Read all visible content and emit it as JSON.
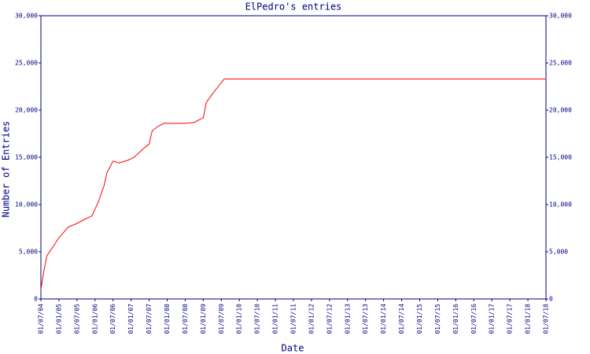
{
  "chart_data": {
    "type": "line",
    "title": "ElPedro's entries",
    "x_label": "Date",
    "y_label": "Number of Entries",
    "x": [
      "2004-07",
      "2004-08",
      "2004-09",
      "2004-11",
      "2005-01",
      "2005-03",
      "2005-04",
      "2005-07",
      "2005-10",
      "2005-12",
      "2006-02",
      "2006-04",
      "2006-05",
      "2006-07",
      "2006-09",
      "2006-12",
      "2007-02",
      "2007-05",
      "2007-07",
      "2007-08",
      "2007-10",
      "2007-12",
      "2008-07",
      "2008-10",
      "2009-01",
      "2009-02",
      "2009-04",
      "2009-06",
      "2009-08",
      "2018-07"
    ],
    "series": [
      {
        "name": "entries",
        "color": "#ff0000",
        "values": [
          1000,
          3000,
          4600,
          5500,
          6500,
          7200,
          7600,
          8000,
          8500,
          8800,
          10200,
          12000,
          13400,
          14600,
          14400,
          14700,
          15000,
          15900,
          16400,
          17800,
          18300,
          18600,
          18600,
          18700,
          19200,
          20800,
          21700,
          22500,
          23300,
          23300
        ]
      }
    ],
    "xlim": [
      "2004-07",
      "2018-07"
    ],
    "xticks": [
      {
        "value": "2004-07",
        "label": "01/07/04"
      },
      {
        "value": "2005-01",
        "label": "01/01/05"
      },
      {
        "value": "2005-07",
        "label": "01/07/05"
      },
      {
        "value": "2006-01",
        "label": "01/01/06"
      },
      {
        "value": "2006-07",
        "label": "01/07/06"
      },
      {
        "value": "2007-01",
        "label": "01/01/07"
      },
      {
        "value": "2007-07",
        "label": "01/07/07"
      },
      {
        "value": "2008-01",
        "label": "01/01/08"
      },
      {
        "value": "2008-07",
        "label": "01/07/08"
      },
      {
        "value": "2009-01",
        "label": "01/01/09"
      },
      {
        "value": "2009-07",
        "label": "01/07/09"
      },
      {
        "value": "2010-01",
        "label": "01/01/10"
      },
      {
        "value": "2010-07",
        "label": "01/07/10"
      },
      {
        "value": "2011-01",
        "label": "01/01/11"
      },
      {
        "value": "2011-07",
        "label": "01/07/11"
      },
      {
        "value": "2012-01",
        "label": "01/01/12"
      },
      {
        "value": "2012-07",
        "label": "01/07/12"
      },
      {
        "value": "2013-01",
        "label": "01/01/13"
      },
      {
        "value": "2013-07",
        "label": "01/07/13"
      },
      {
        "value": "2014-01",
        "label": "01/01/14"
      },
      {
        "value": "2014-07",
        "label": "01/07/14"
      },
      {
        "value": "2015-01",
        "label": "01/01/15"
      },
      {
        "value": "2015-07",
        "label": "01/07/15"
      },
      {
        "value": "2016-01",
        "label": "01/01/16"
      },
      {
        "value": "2016-07",
        "label": "01/07/16"
      },
      {
        "value": "2017-01",
        "label": "01/01/17"
      },
      {
        "value": "2017-07",
        "label": "01/07/17"
      },
      {
        "value": "2018-01",
        "label": "01/01/18"
      },
      {
        "value": "2018-07",
        "label": "01/07/18"
      }
    ],
    "ylim": [
      0,
      30000
    ],
    "yticks": [
      0,
      {
        "value": 5000,
        "label": "5,000"
      },
      {
        "value": 10000,
        "label": "10,000"
      },
      {
        "value": 15000,
        "label": "15,000"
      },
      {
        "value": 20000,
        "label": "20,000"
      },
      {
        "value": 25000,
        "label": "25,000"
      },
      {
        "value": 30000,
        "label": "30,000"
      }
    ],
    "axis_color": "#000080"
  }
}
